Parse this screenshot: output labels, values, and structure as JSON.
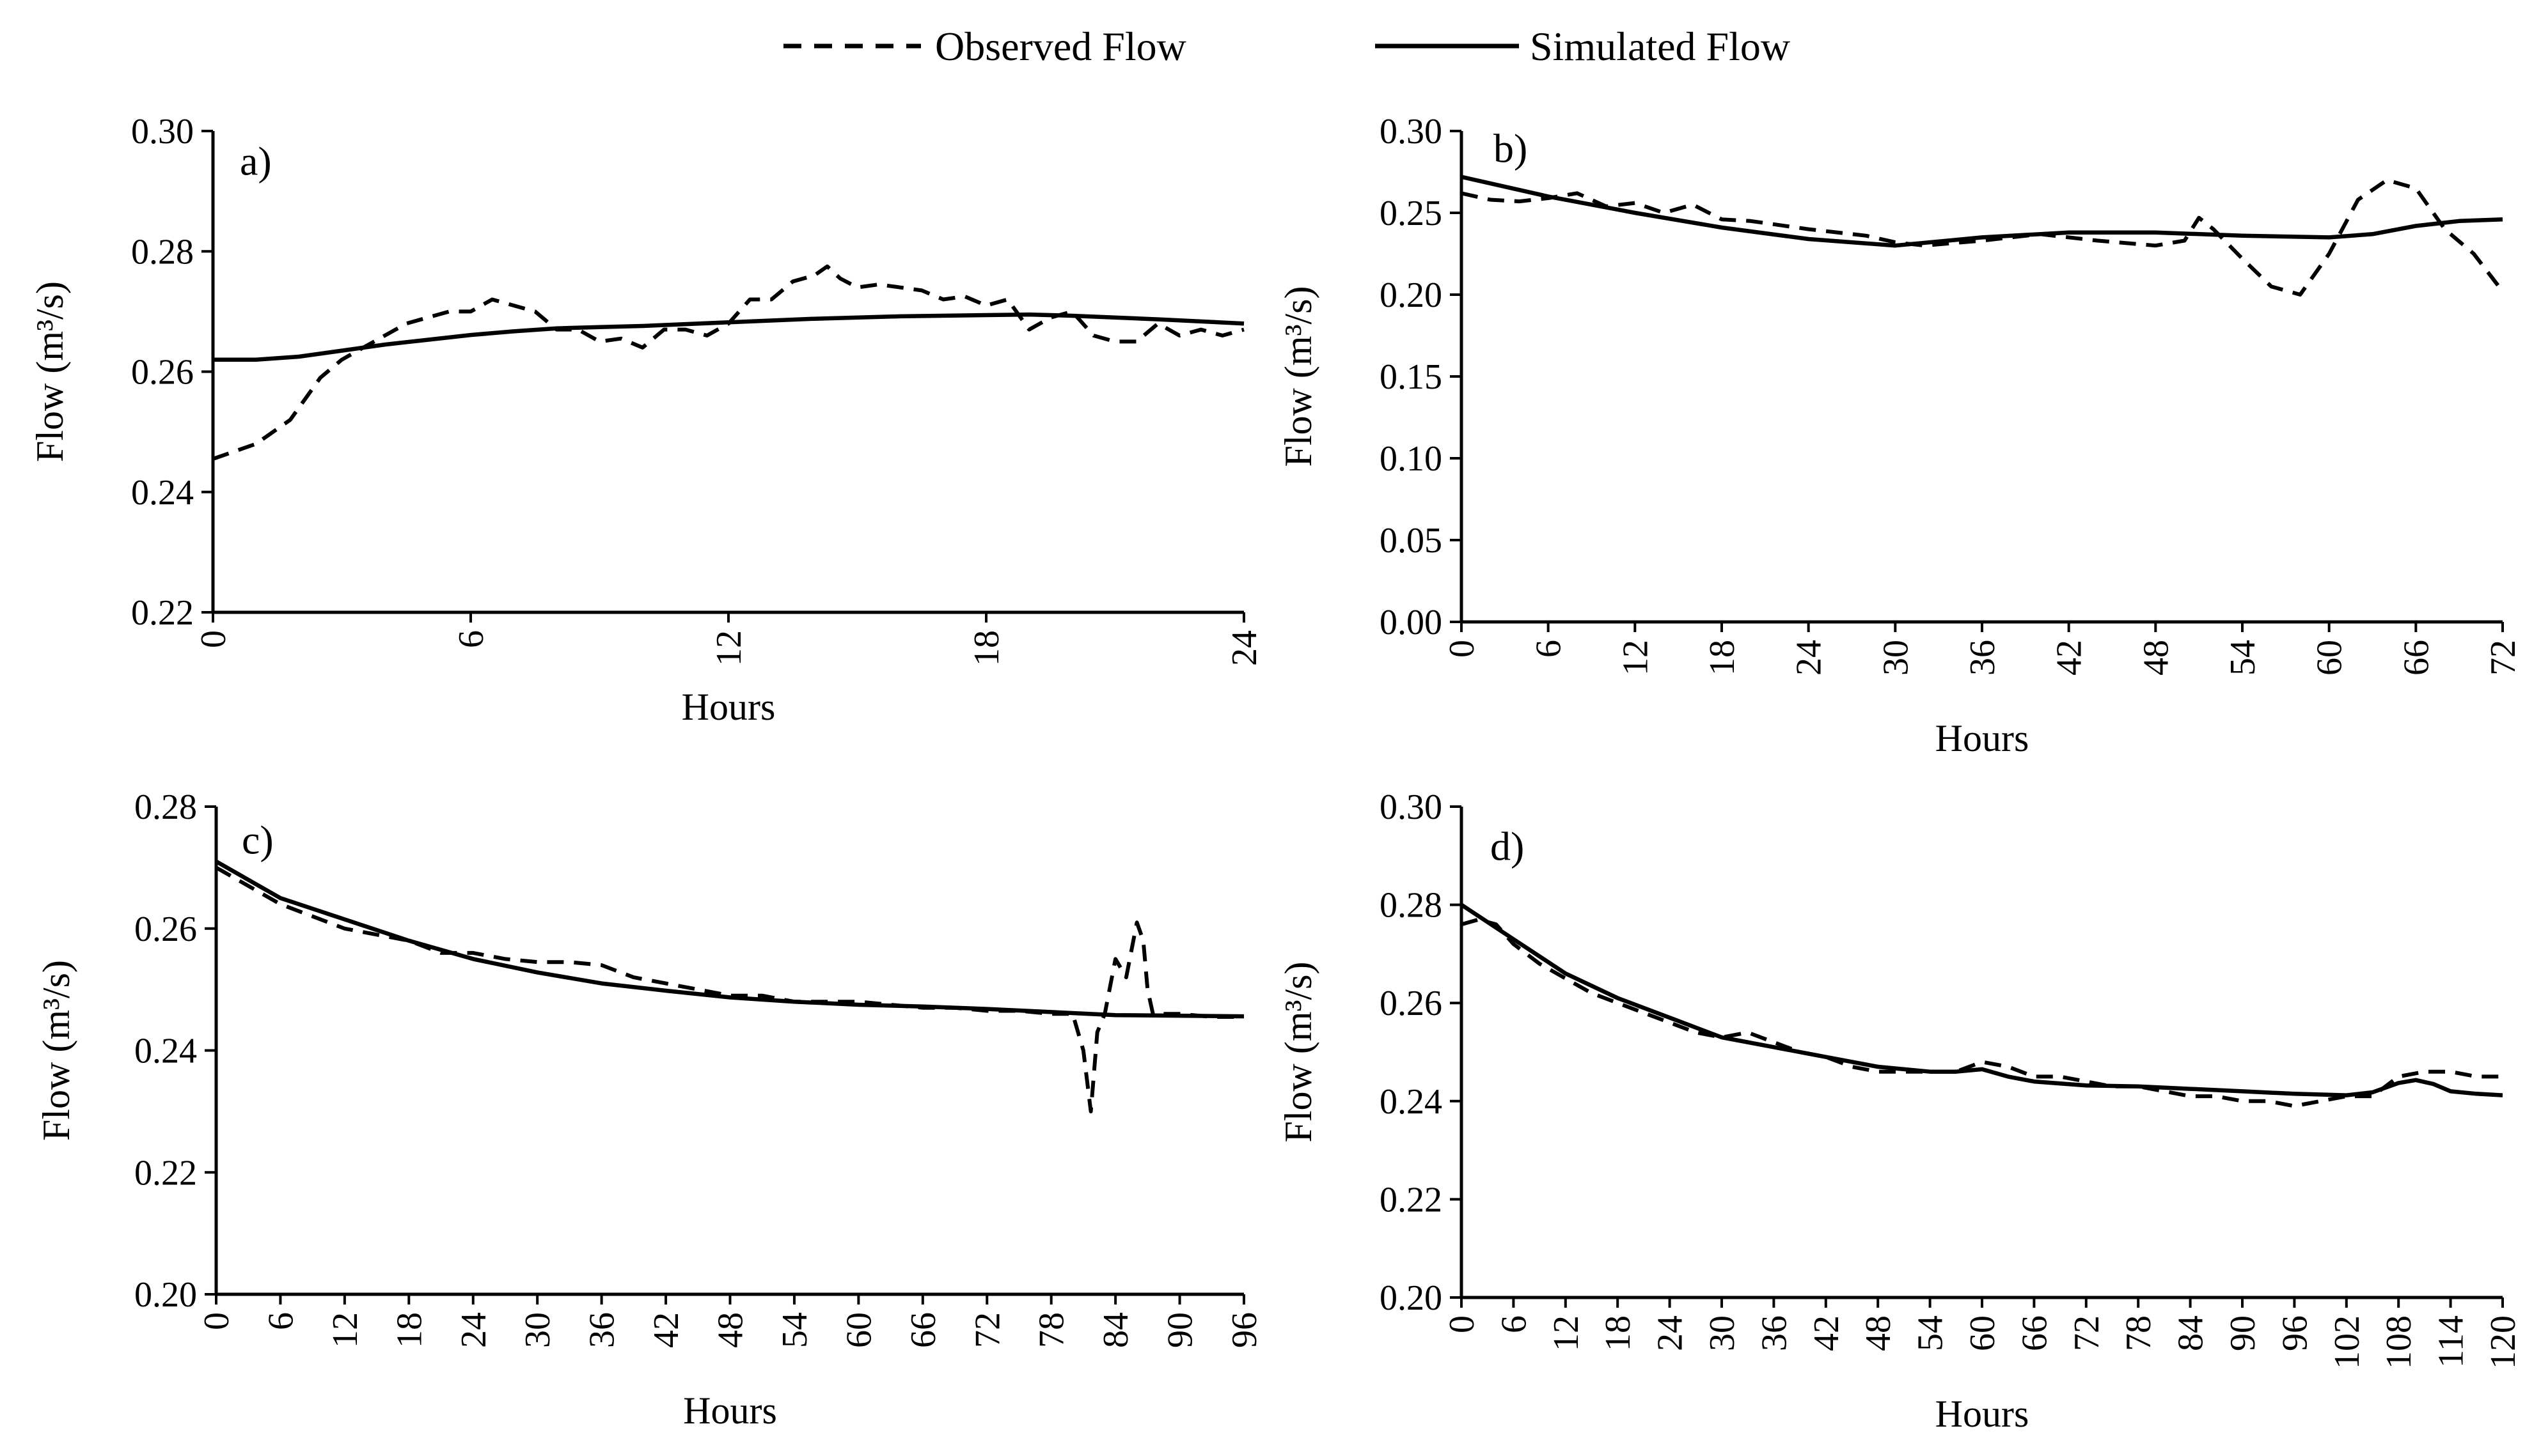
{
  "legend": {
    "observed_label": "Observed Flow",
    "simulated_label": "Simulated Flow"
  },
  "chart_data": [
    {
      "type": "line",
      "panel": "a)",
      "xlabel": "Hours",
      "ylabel": "Flow (m³/s)",
      "xlim": [
        0,
        24
      ],
      "ylim": [
        0.22,
        0.3
      ],
      "xticks": [
        0,
        6,
        12,
        18,
        24
      ],
      "yticks": [
        "0.22",
        "0.24",
        "0.26",
        "0.28",
        "0.30"
      ],
      "series": [
        {
          "name": "Observed Flow",
          "style": "dashed",
          "x": [
            0,
            1,
            1.8,
            2.5,
            3,
            3.5,
            4,
            4.5,
            5,
            5.5,
            6,
            6.5,
            7,
            7.5,
            8,
            8.5,
            9,
            9.5,
            10,
            10.5,
            11,
            11.5,
            12,
            12.5,
            13,
            13.5,
            14,
            14.3,
            14.6,
            15,
            15.5,
            16,
            16.5,
            17,
            17.5,
            18,
            18.5,
            19,
            19.5,
            20,
            20.5,
            21,
            21.5,
            22,
            22.5,
            23,
            23.5,
            24
          ],
          "y": [
            0.2455,
            0.248,
            0.252,
            0.259,
            0.262,
            0.264,
            0.266,
            0.268,
            0.269,
            0.27,
            0.27,
            0.272,
            0.271,
            0.27,
            0.267,
            0.267,
            0.265,
            0.2655,
            0.264,
            0.267,
            0.267,
            0.266,
            0.268,
            0.272,
            0.272,
            0.275,
            0.276,
            0.2775,
            0.2755,
            0.274,
            0.2745,
            0.274,
            0.2735,
            0.272,
            0.2725,
            0.271,
            0.272,
            0.267,
            0.269,
            0.27,
            0.266,
            0.265,
            0.265,
            0.268,
            0.266,
            0.267,
            0.266,
            0.267
          ]
        },
        {
          "name": "Simulated Flow",
          "style": "solid",
          "x": [
            0,
            1,
            2,
            3,
            4,
            5,
            6,
            7,
            8,
            9,
            10,
            12,
            14,
            16,
            18,
            19,
            20,
            22,
            24
          ],
          "y": [
            0.262,
            0.262,
            0.2625,
            0.2635,
            0.2645,
            0.2653,
            0.2661,
            0.2667,
            0.2672,
            0.2674,
            0.2676,
            0.2682,
            0.2688,
            0.2692,
            0.2694,
            0.2695,
            0.2693,
            0.2687,
            0.268
          ]
        }
      ]
    },
    {
      "type": "line",
      "panel": "b)",
      "xlabel": "Hours",
      "ylabel": "Flow (m³/s)",
      "xlim": [
        0,
        72
      ],
      "ylim": [
        0.0,
        0.3
      ],
      "xticks": [
        0,
        6,
        12,
        18,
        24,
        30,
        36,
        42,
        48,
        54,
        60,
        66,
        72
      ],
      "yticks": [
        "0.00",
        "0.05",
        "0.10",
        "0.15",
        "0.20",
        "0.25",
        "0.30"
      ],
      "series": [
        {
          "name": "Observed Flow",
          "style": "dashed",
          "x": [
            0,
            2,
            4,
            6,
            8,
            10,
            12,
            14,
            16,
            18,
            20,
            24,
            28,
            30,
            32,
            36,
            40,
            44,
            48,
            50,
            51,
            52,
            54,
            56,
            58,
            60,
            62,
            64,
            66,
            68,
            70,
            72
          ],
          "y": [
            0.262,
            0.258,
            0.257,
            0.259,
            0.262,
            0.254,
            0.256,
            0.25,
            0.255,
            0.246,
            0.245,
            0.24,
            0.236,
            0.232,
            0.23,
            0.233,
            0.237,
            0.233,
            0.23,
            0.233,
            0.247,
            0.24,
            0.222,
            0.205,
            0.2,
            0.225,
            0.258,
            0.27,
            0.265,
            0.24,
            0.225,
            0.202
          ]
        },
        {
          "name": "Simulated Flow",
          "style": "solid",
          "x": [
            0,
            6,
            12,
            18,
            24,
            30,
            36,
            42,
            48,
            54,
            60,
            63,
            66,
            69,
            72
          ],
          "y": [
            0.272,
            0.26,
            0.25,
            0.241,
            0.234,
            0.23,
            0.235,
            0.238,
            0.238,
            0.236,
            0.235,
            0.237,
            0.242,
            0.245,
            0.246
          ]
        }
      ]
    },
    {
      "type": "line",
      "panel": "c)",
      "xlabel": "Hours",
      "ylabel": "Flow (m³/s)",
      "xlim": [
        0,
        96
      ],
      "ylim": [
        0.2,
        0.28
      ],
      "xticks": [
        0,
        6,
        12,
        18,
        24,
        30,
        36,
        42,
        48,
        54,
        60,
        66,
        72,
        78,
        84,
        90,
        96
      ],
      "yticks": [
        "0.20",
        "0.22",
        "0.24",
        "0.26",
        "0.28"
      ],
      "series": [
        {
          "name": "Observed Flow",
          "style": "dashed",
          "x": [
            0,
            3,
            6,
            9,
            12,
            15,
            18,
            21,
            24,
            27,
            30,
            33,
            36,
            39,
            42,
            45,
            48,
            51,
            54,
            57,
            60,
            63,
            66,
            69,
            72,
            75,
            78,
            80,
            81,
            81.7,
            82.3,
            83,
            84,
            85,
            86,
            86.6,
            87,
            87.5,
            90,
            93,
            96
          ],
          "y": [
            0.27,
            0.267,
            0.264,
            0.262,
            0.26,
            0.259,
            0.258,
            0.256,
            0.256,
            0.255,
            0.2545,
            0.2545,
            0.254,
            0.252,
            0.251,
            0.25,
            0.249,
            0.249,
            0.248,
            0.248,
            0.248,
            0.2475,
            0.247,
            0.247,
            0.2465,
            0.2465,
            0.246,
            0.246,
            0.24,
            0.23,
            0.243,
            0.246,
            0.255,
            0.252,
            0.261,
            0.258,
            0.25,
            0.246,
            0.246,
            0.2455,
            0.2455
          ]
        },
        {
          "name": "Simulated Flow",
          "style": "solid",
          "x": [
            0,
            6,
            12,
            18,
            24,
            30,
            36,
            42,
            48,
            54,
            60,
            66,
            72,
            78,
            84,
            90,
            96
          ],
          "y": [
            0.271,
            0.265,
            0.2615,
            0.258,
            0.255,
            0.2528,
            0.251,
            0.2498,
            0.2487,
            0.248,
            0.2475,
            0.2472,
            0.2468,
            0.2463,
            0.2458,
            0.2457,
            0.2456
          ]
        }
      ]
    },
    {
      "type": "line",
      "panel": "d)",
      "xlabel": "Hours",
      "ylabel": "Flow (m³/s)",
      "xlim": [
        0,
        120
      ],
      "ylim": [
        0.2,
        0.3
      ],
      "xticks": [
        0,
        6,
        12,
        18,
        24,
        30,
        36,
        42,
        48,
        54,
        60,
        66,
        72,
        78,
        84,
        90,
        96,
        102,
        108,
        114,
        120
      ],
      "yticks": [
        "0.20",
        "0.22",
        "0.24",
        "0.26",
        "0.28",
        "0.30"
      ],
      "series": [
        {
          "name": "Observed Flow",
          "style": "dashed",
          "x": [
            0,
            2,
            4,
            6,
            9,
            12,
            15,
            18,
            21,
            24,
            27,
            30,
            33,
            36,
            39,
            42,
            45,
            48,
            51,
            54,
            57,
            60,
            63,
            66,
            69,
            72,
            75,
            78,
            81,
            84,
            87,
            90,
            93,
            96,
            99,
            102,
            105,
            108,
            111,
            114,
            117,
            120
          ],
          "y": [
            0.276,
            0.277,
            0.276,
            0.272,
            0.268,
            0.265,
            0.262,
            0.26,
            0.258,
            0.256,
            0.254,
            0.253,
            0.254,
            0.252,
            0.25,
            0.249,
            0.247,
            0.246,
            0.246,
            0.246,
            0.246,
            0.248,
            0.247,
            0.245,
            0.245,
            0.244,
            0.243,
            0.243,
            0.242,
            0.241,
            0.241,
            0.24,
            0.24,
            0.239,
            0.24,
            0.241,
            0.241,
            0.245,
            0.246,
            0.246,
            0.245,
            0.245
          ]
        },
        {
          "name": "Simulated Flow",
          "style": "solid",
          "x": [
            0,
            6,
            12,
            18,
            24,
            30,
            36,
            42,
            48,
            54,
            57,
            60,
            63,
            66,
            72,
            78,
            84,
            90,
            96,
            102,
            105,
            108,
            110,
            112,
            114,
            117,
            120
          ],
          "y": [
            0.28,
            0.273,
            0.266,
            0.261,
            0.257,
            0.253,
            0.251,
            0.249,
            0.247,
            0.246,
            0.246,
            0.2465,
            0.245,
            0.244,
            0.2432,
            0.243,
            0.2425,
            0.242,
            0.2415,
            0.2412,
            0.2418,
            0.2437,
            0.2443,
            0.2435,
            0.242,
            0.2415,
            0.2412
          ]
        }
      ]
    }
  ]
}
